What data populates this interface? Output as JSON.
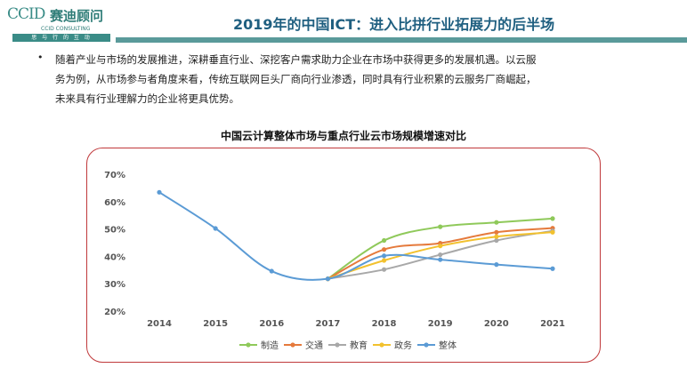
{
  "header": {
    "logo_mark": "CCID",
    "logo_cn": "赛迪顾问",
    "logo_en": "CCID CONSULTING",
    "logo_tagline": "思 与 行 的 互 动",
    "title": "2019年的中国ICT：进入比拼行业拓展力的后半场"
  },
  "body": {
    "bullet_lines": [
      "随着产业与市场的发展推进，深耕垂直行业、深挖客户需求助力企业在市场中获得更多的发展机遇。以云服",
      "务为例，从市场参与者角度来看，传统互联网巨头厂商向行业渗透，同时具有行业积累的云服务厂商崛起，",
      "未来具有行业理解力的企业将更具优势。"
    ]
  },
  "chart_data": {
    "type": "line",
    "title": "中国云计算整体市场与重点行业云市场规模增速对比",
    "categories": [
      "2014",
      "2015",
      "2016",
      "2017",
      "2018",
      "2019",
      "2020",
      "2021"
    ],
    "ylim": [
      0.2,
      0.7
    ],
    "yticks": [
      "20%",
      "30%",
      "40%",
      "50%",
      "60%",
      "70%"
    ],
    "grid": false,
    "legend_position": "bottom",
    "series": [
      {
        "name": "制造",
        "color": "#8fc95a",
        "values": [
          null,
          null,
          null,
          0.318,
          0.458,
          0.508,
          0.524,
          0.538
        ]
      },
      {
        "name": "交通",
        "color": "#e57a3c",
        "values": [
          null,
          null,
          null,
          0.318,
          0.425,
          0.448,
          0.488,
          0.503
        ]
      },
      {
        "name": "教育",
        "color": "#a8a8a8",
        "values": [
          null,
          null,
          null,
          0.318,
          0.352,
          0.406,
          0.458,
          0.493
        ]
      },
      {
        "name": "政务",
        "color": "#f2c12e",
        "values": [
          null,
          null,
          null,
          0.318,
          0.385,
          0.438,
          0.472,
          0.488
        ]
      },
      {
        "name": "整体",
        "color": "#5b9bd5",
        "values": [
          0.634,
          0.502,
          0.346,
          0.318,
          0.402,
          0.388,
          0.37,
          0.355
        ]
      }
    ]
  }
}
